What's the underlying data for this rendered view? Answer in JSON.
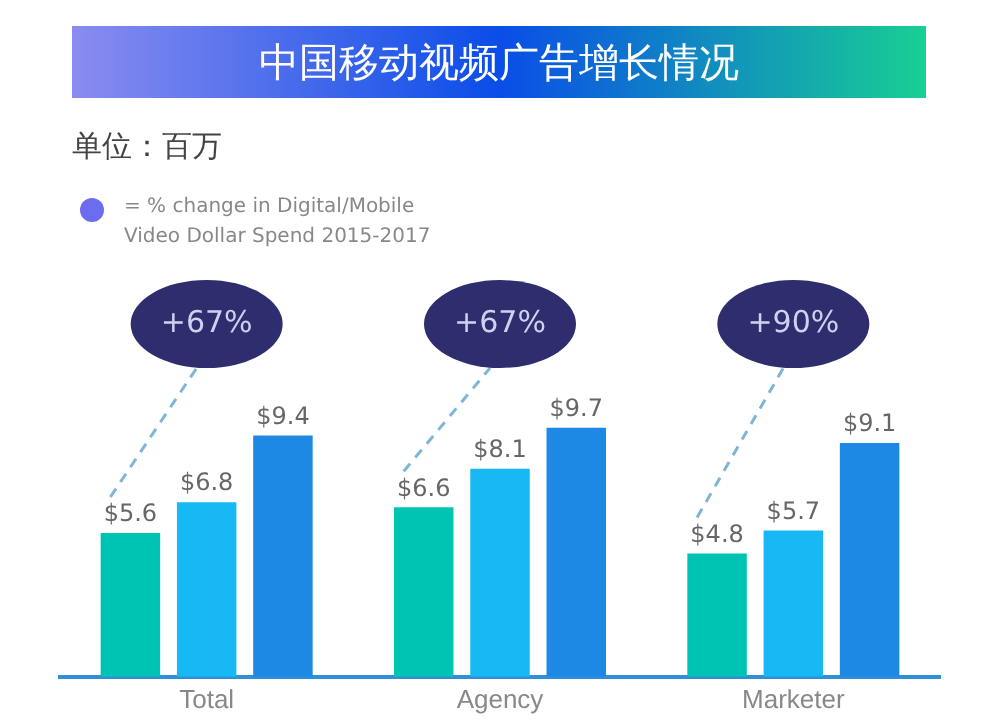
{
  "chart_data": {
    "type": "bar",
    "title": "中国移动视频广告增长情况",
    "subtitle": "单位：百万",
    "categories": [
      "Total",
      "Agency",
      "Marketer"
    ],
    "series": [
      {
        "color": "#00c4b3",
        "values": [
          5.6,
          6.6,
          4.8
        ],
        "value_labels": [
          "$5.6",
          "$6.6",
          "$4.8"
        ]
      },
      {
        "color": "#16b9f4",
        "values": [
          6.8,
          8.1,
          5.7
        ],
        "value_labels": [
          "$6.8",
          "$8.1",
          "$5.7"
        ]
      },
      {
        "color": "#1e88e5",
        "values": [
          9.4,
          9.7,
          9.1
        ],
        "value_labels": [
          "$9.4",
          "$9.7",
          "$9.1"
        ]
      }
    ],
    "annotations": [
      "= % change in Digital/Mobile Video Dollar Spend 2015-2017",
      "+67%",
      "+67%",
      "+90%"
    ],
    "grid": false,
    "legend": false
  }
}
